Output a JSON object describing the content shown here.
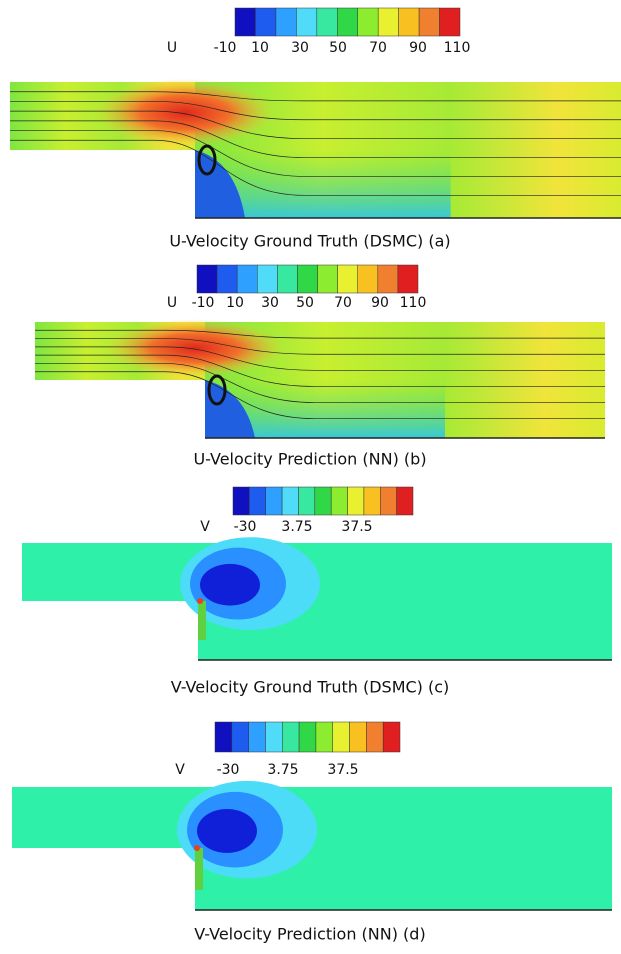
{
  "panels": [
    {
      "colorbar": {
        "variable": "U",
        "labels": [
          "-10",
          "10",
          "30",
          "50",
          "70",
          "90",
          "110"
        ]
      },
      "caption": "U-Velocity Ground Truth (DSMC) (a)"
    },
    {
      "colorbar": {
        "variable": "U",
        "labels": [
          "-10",
          "10",
          "30",
          "50",
          "70",
          "90",
          "110"
        ]
      },
      "caption": "U-Velocity Prediction (NN) (b)"
    },
    {
      "colorbar": {
        "variable": "V",
        "labels": [
          "-30",
          "3.75",
          "37.5"
        ]
      },
      "caption": "V-Velocity Ground Truth (DSMC) (c)"
    },
    {
      "colorbar": {
        "variable": "V",
        "labels": [
          "-30",
          "3.75",
          "37.5"
        ]
      },
      "caption": "V-Velocity Prediction (NN) (d)"
    }
  ]
}
